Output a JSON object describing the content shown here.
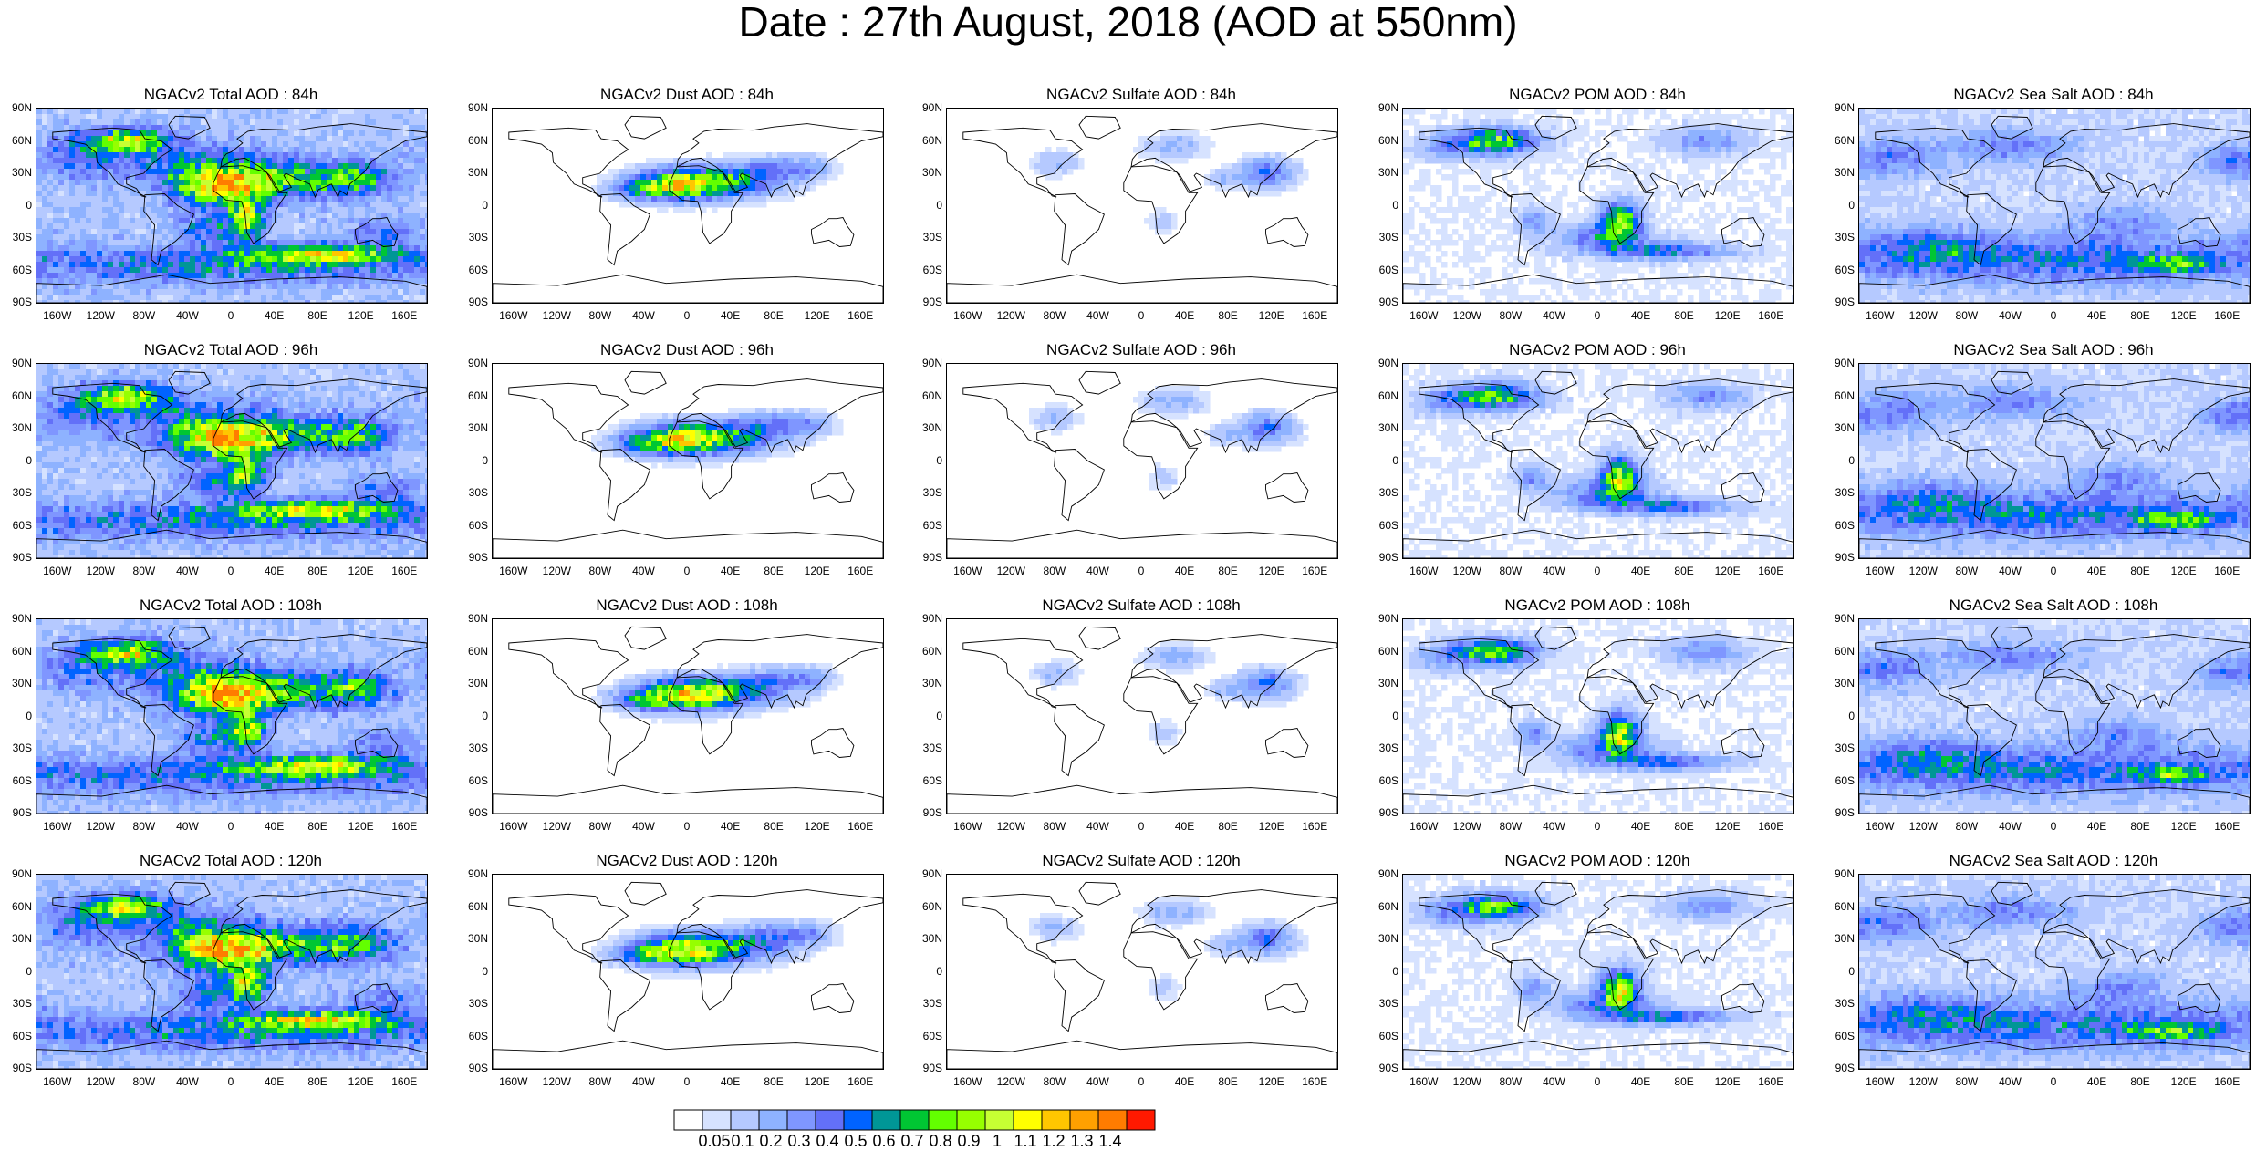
{
  "title": "Date : 27th August, 2018 (AOD at 550nm)",
  "rows": [
    "84h",
    "96h",
    "108h",
    "120h"
  ],
  "panels": [
    [
      "NGACv2 Total AOD : 84h",
      "NGACv2 Dust AOD : 84h",
      "NGACv2 Sulfate AOD : 84h",
      "NGACv2 POM AOD : 84h",
      "NGACv2 Sea Salt AOD : 84h"
    ],
    [
      "NGACv2 Total AOD : 96h",
      "NGACv2 Dust AOD : 96h",
      "NGACv2 Sulfate AOD : 96h",
      "NGACv2 POM AOD : 96h",
      "NGACv2 Sea Salt AOD : 96h"
    ],
    [
      "NGACv2 Total AOD : 108h",
      "NGACv2 Dust AOD : 108h",
      "NGACv2 Sulfate AOD : 108h",
      "NGACv2 POM AOD : 108h",
      "NGACv2 Sea Salt AOD : 108h"
    ],
    [
      "NGACv2 Total AOD : 120h",
      "NGACv2 Dust AOD : 120h",
      "NGACv2 Sulfate AOD : 120h",
      "NGACv2 POM AOD : 120h",
      "NGACv2 Sea Salt  AOD : 120h"
    ]
  ],
  "species": [
    "Total",
    "Dust",
    "Sulfate",
    "POM",
    "Sea Salt"
  ],
  "lat_labels": [
    "90N",
    "60N",
    "30N",
    "0",
    "30S",
    "60S",
    "90S"
  ],
  "lon_labels": [
    "160W",
    "120W",
    "80W",
    "40W",
    "0",
    "40E",
    "80E",
    "120E",
    "160E"
  ],
  "lon_values": [
    -160,
    -120,
    -80,
    -40,
    0,
    40,
    80,
    120,
    160
  ],
  "colorbar": {
    "labels": [
      "0.05",
      "0.1",
      "0.2",
      "0.3",
      "0.4",
      "0.5",
      "0.6",
      "0.7",
      "0.8",
      "0.9",
      "1",
      "1.1",
      "1.2",
      "1.3",
      "1.4"
    ],
    "colors": [
      "#ffffff",
      "#d6e2ff",
      "#b5c9ff",
      "#8eb2ff",
      "#7f96ff",
      "#6370f8",
      "#0063ff",
      "#009696",
      "#00c633",
      "#63ff00",
      "#96ff00",
      "#c6ff33",
      "#ffff00",
      "#ffc600",
      "#ffa000",
      "#ff7c00",
      "#ff1900"
    ]
  }
}
